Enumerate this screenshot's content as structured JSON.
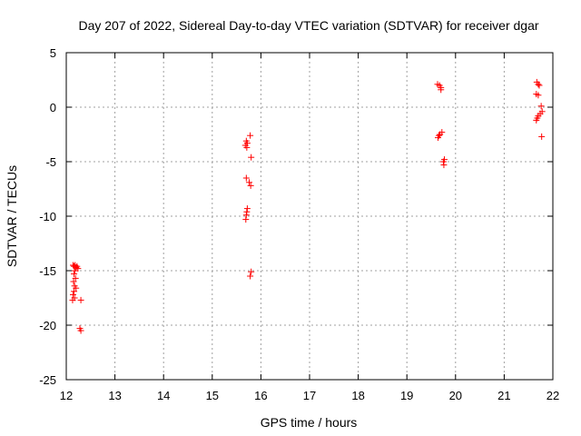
{
  "chart_data": {
    "type": "scatter",
    "title": "Day 207 of 2022, Sidereal Day-to-day VTEC variation (SDTVAR) for receiver dgar",
    "xlabel": "GPS time / hours",
    "ylabel": "SDTVAR / TECUs",
    "xlim": [
      12,
      22
    ],
    "ylim": [
      -25,
      5
    ],
    "xticks": [
      12,
      13,
      14,
      15,
      16,
      17,
      18,
      19,
      20,
      21,
      22
    ],
    "yticks": [
      -25,
      -20,
      -15,
      -10,
      -5,
      0,
      5
    ],
    "xtick_labels": [
      "12",
      "13",
      "14",
      "15",
      "16",
      "17",
      "18",
      "19",
      "20",
      "21",
      "22"
    ],
    "ytick_labels": [
      "-25",
      "-20",
      "-15",
      "-10",
      "-5",
      "0",
      "5"
    ],
    "grid": true,
    "marker": "plus",
    "series": [
      {
        "name": "SDTVAR",
        "color": "#ff0000",
        "points": [
          {
            "x": 12.14,
            "y": -14.5
          },
          {
            "x": 12.16,
            "y": -14.6
          },
          {
            "x": 12.18,
            "y": -14.5
          },
          {
            "x": 12.2,
            "y": -14.7
          },
          {
            "x": 12.22,
            "y": -14.6
          },
          {
            "x": 12.24,
            "y": -14.8
          },
          {
            "x": 12.18,
            "y": -15.0
          },
          {
            "x": 12.16,
            "y": -15.3
          },
          {
            "x": 12.19,
            "y": -15.7
          },
          {
            "x": 12.15,
            "y": -16.0
          },
          {
            "x": 12.17,
            "y": -16.4
          },
          {
            "x": 12.2,
            "y": -16.6
          },
          {
            "x": 12.16,
            "y": -16.9
          },
          {
            "x": 12.14,
            "y": -17.2
          },
          {
            "x": 12.17,
            "y": -17.5
          },
          {
            "x": 12.13,
            "y": -17.7
          },
          {
            "x": 12.3,
            "y": -17.7
          },
          {
            "x": 12.28,
            "y": -20.3
          },
          {
            "x": 12.3,
            "y": -20.5
          },
          {
            "x": 15.78,
            "y": -2.6
          },
          {
            "x": 15.7,
            "y": -3.1
          },
          {
            "x": 15.72,
            "y": -3.3
          },
          {
            "x": 15.68,
            "y": -3.5
          },
          {
            "x": 15.71,
            "y": -3.7
          },
          {
            "x": 15.8,
            "y": -4.6
          },
          {
            "x": 15.7,
            "y": -6.5
          },
          {
            "x": 15.76,
            "y": -6.9
          },
          {
            "x": 15.79,
            "y": -7.2
          },
          {
            "x": 15.72,
            "y": -9.3
          },
          {
            "x": 15.71,
            "y": -9.6
          },
          {
            "x": 15.7,
            "y": -9.9
          },
          {
            "x": 15.69,
            "y": -10.3
          },
          {
            "x": 15.8,
            "y": -15.1
          },
          {
            "x": 15.78,
            "y": -15.5
          },
          {
            "x": 19.63,
            "y": 2.1
          },
          {
            "x": 19.67,
            "y": 2.0
          },
          {
            "x": 19.7,
            "y": 1.8
          },
          {
            "x": 19.7,
            "y": 1.6
          },
          {
            "x": 19.72,
            "y": -2.3
          },
          {
            "x": 19.68,
            "y": -2.5
          },
          {
            "x": 19.66,
            "y": -2.6
          },
          {
            "x": 19.64,
            "y": -2.8
          },
          {
            "x": 19.77,
            "y": -4.8
          },
          {
            "x": 19.75,
            "y": -5.0
          },
          {
            "x": 19.76,
            "y": -5.3
          },
          {
            "x": 21.67,
            "y": 2.3
          },
          {
            "x": 21.7,
            "y": 2.1
          },
          {
            "x": 21.72,
            "y": 2.0
          },
          {
            "x": 21.66,
            "y": 1.2
          },
          {
            "x": 21.7,
            "y": 1.1
          },
          {
            "x": 21.76,
            "y": 0.1
          },
          {
            "x": 21.78,
            "y": -0.4
          },
          {
            "x": 21.74,
            "y": -0.6
          },
          {
            "x": 21.7,
            "y": -0.8
          },
          {
            "x": 21.68,
            "y": -1.0
          },
          {
            "x": 21.66,
            "y": -1.2
          },
          {
            "x": 21.77,
            "y": -2.7
          }
        ]
      }
    ]
  }
}
